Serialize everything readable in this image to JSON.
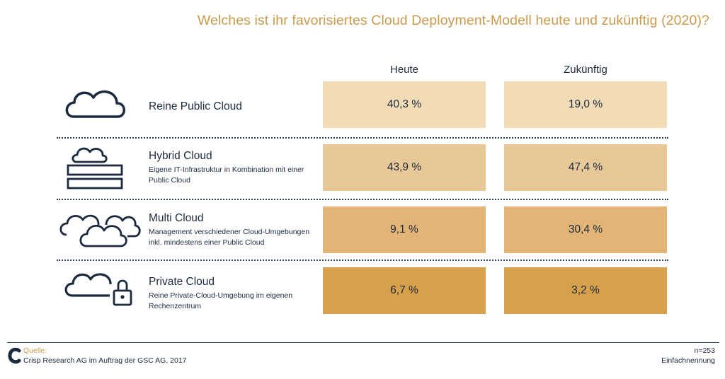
{
  "title": "Welches ist ihr favorisiertes Cloud Deployment-Modell heute und zukünftig (2020)?",
  "chart_data": {
    "type": "table",
    "title": "Welches ist ihr favorisiertes Cloud Deployment-Modell heute und zukünftig (2020)?",
    "columns": [
      "Heute",
      "Zukünftig"
    ],
    "rows": [
      {
        "name": "Reine Public Cloud",
        "description": "",
        "icon": "cloud-icon",
        "values": [
          40.3,
          19.0
        ],
        "labels": [
          "40,3 %",
          "19,0 %"
        ],
        "colors": [
          "#f1dcb6",
          "#f1dcb6"
        ]
      },
      {
        "name": "Hybrid Cloud",
        "description": "Eigene IT-Infrastruktur in Kombination mit einer Public Cloud",
        "icon": "hybrid-cloud-server-icon",
        "values": [
          43.9,
          47.4
        ],
        "labels": [
          "43,9 %",
          "47,4 %"
        ],
        "colors": [
          "#e9c898",
          "#e9c898"
        ]
      },
      {
        "name": "Multi Cloud",
        "description": "Management verschiedener Cloud-Umgebungen inkl. mindestens einer Public Cloud",
        "icon": "multi-cloud-icon",
        "values": [
          9.1,
          30.4
        ],
        "labels": [
          "9,1 %",
          "30,4 %"
        ],
        "colors": [
          "#e2b577",
          "#e2b577"
        ]
      },
      {
        "name": "Private Cloud",
        "description": "Reine Private-Cloud-Umgebung im eigenen Rechenzentrum",
        "icon": "cloud-lock-icon",
        "values": [
          6.7,
          3.2
        ],
        "labels": [
          "6,7 %",
          "3,2 %"
        ],
        "colors": [
          "#d7a04b",
          "#d7a04b"
        ]
      }
    ]
  },
  "footer": {
    "source_label": "Quelle:",
    "source_text": "Crisp Research AG im Auftrag der GSC AG, 2017",
    "n_value": "n=253",
    "n_note": "Einfachnennung",
    "logo_icon": "crisp-logo-icon",
    "accent_color": "#c99a4e",
    "text_color": "#1c2a3f"
  }
}
